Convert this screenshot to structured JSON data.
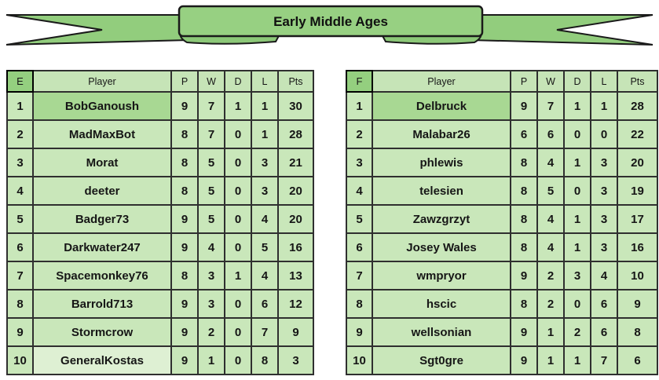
{
  "banner": {
    "title": "Early Middle Ages"
  },
  "columns": {
    "player": "Player",
    "p": "P",
    "w": "W",
    "d": "D",
    "l": "L",
    "pts": "Pts"
  },
  "colors": {
    "ribbon_green": "#92cd7d",
    "fold_green": "#8cc878",
    "cell_green": "#c9e7ba",
    "header_green": "#c6e4b7",
    "rank_header_green": "#94cf7f",
    "leader_green": "#a8d893",
    "last_place_light_green": "#def0d3",
    "border_dark": "#2f2f2f"
  },
  "chart_data": {
    "type": "table",
    "title": "Early Middle Ages",
    "tables": [
      {
        "group": "E",
        "columns": [
          "Player",
          "P",
          "W",
          "D",
          "L",
          "Pts"
        ]
      },
      {
        "group": "F",
        "columns": [
          "Player",
          "P",
          "W",
          "D",
          "L",
          "Pts"
        ]
      }
    ]
  },
  "tables": [
    {
      "group": "E",
      "rows": [
        {
          "rank": "1",
          "player": "BobGanoush",
          "p": "9",
          "w": "7",
          "d": "1",
          "l": "1",
          "pts": "30",
          "highlight": "leader"
        },
        {
          "rank": "2",
          "player": "MadMaxBot",
          "p": "8",
          "w": "7",
          "d": "0",
          "l": "1",
          "pts": "28"
        },
        {
          "rank": "3",
          "player": "Morat",
          "p": "8",
          "w": "5",
          "d": "0",
          "l": "3",
          "pts": "21"
        },
        {
          "rank": "4",
          "player": "deeter",
          "p": "8",
          "w": "5",
          "d": "0",
          "l": "3",
          "pts": "20"
        },
        {
          "rank": "5",
          "player": "Badger73",
          "p": "9",
          "w": "5",
          "d": "0",
          "l": "4",
          "pts": "20"
        },
        {
          "rank": "6",
          "player": "Darkwater247",
          "p": "9",
          "w": "4",
          "d": "0",
          "l": "5",
          "pts": "16"
        },
        {
          "rank": "7",
          "player": "Spacemonkey76",
          "p": "8",
          "w": "3",
          "d": "1",
          "l": "4",
          "pts": "13"
        },
        {
          "rank": "8",
          "player": "Barrold713",
          "p": "9",
          "w": "3",
          "d": "0",
          "l": "6",
          "pts": "12"
        },
        {
          "rank": "9",
          "player": "Stormcrow",
          "p": "9",
          "w": "2",
          "d": "0",
          "l": "7",
          "pts": "9"
        },
        {
          "rank": "10",
          "player": "GeneralKostas",
          "p": "9",
          "w": "1",
          "d": "0",
          "l": "8",
          "pts": "3",
          "highlight": "light"
        }
      ]
    },
    {
      "group": "F",
      "rows": [
        {
          "rank": "1",
          "player": "Delbruck",
          "p": "9",
          "w": "7",
          "d": "1",
          "l": "1",
          "pts": "28",
          "highlight": "leader"
        },
        {
          "rank": "2",
          "player": "Malabar26",
          "p": "6",
          "w": "6",
          "d": "0",
          "l": "0",
          "pts": "22"
        },
        {
          "rank": "3",
          "player": "phlewis",
          "p": "8",
          "w": "4",
          "d": "1",
          "l": "3",
          "pts": "20"
        },
        {
          "rank": "4",
          "player": "telesien",
          "p": "8",
          "w": "5",
          "d": "0",
          "l": "3",
          "pts": "19"
        },
        {
          "rank": "5",
          "player": "Zawzgrzyt",
          "p": "8",
          "w": "4",
          "d": "1",
          "l": "3",
          "pts": "17"
        },
        {
          "rank": "6",
          "player": "Josey Wales",
          "p": "8",
          "w": "4",
          "d": "1",
          "l": "3",
          "pts": "16"
        },
        {
          "rank": "7",
          "player": "wmpryor",
          "p": "9",
          "w": "2",
          "d": "3",
          "l": "4",
          "pts": "10"
        },
        {
          "rank": "8",
          "player": "hscic",
          "p": "8",
          "w": "2",
          "d": "0",
          "l": "6",
          "pts": "9"
        },
        {
          "rank": "9",
          "player": "wellsonian",
          "p": "9",
          "w": "1",
          "d": "2",
          "l": "6",
          "pts": "8"
        },
        {
          "rank": "10",
          "player": "Sgt0gre",
          "p": "9",
          "w": "1",
          "d": "1",
          "l": "7",
          "pts": "6"
        }
      ]
    }
  ]
}
